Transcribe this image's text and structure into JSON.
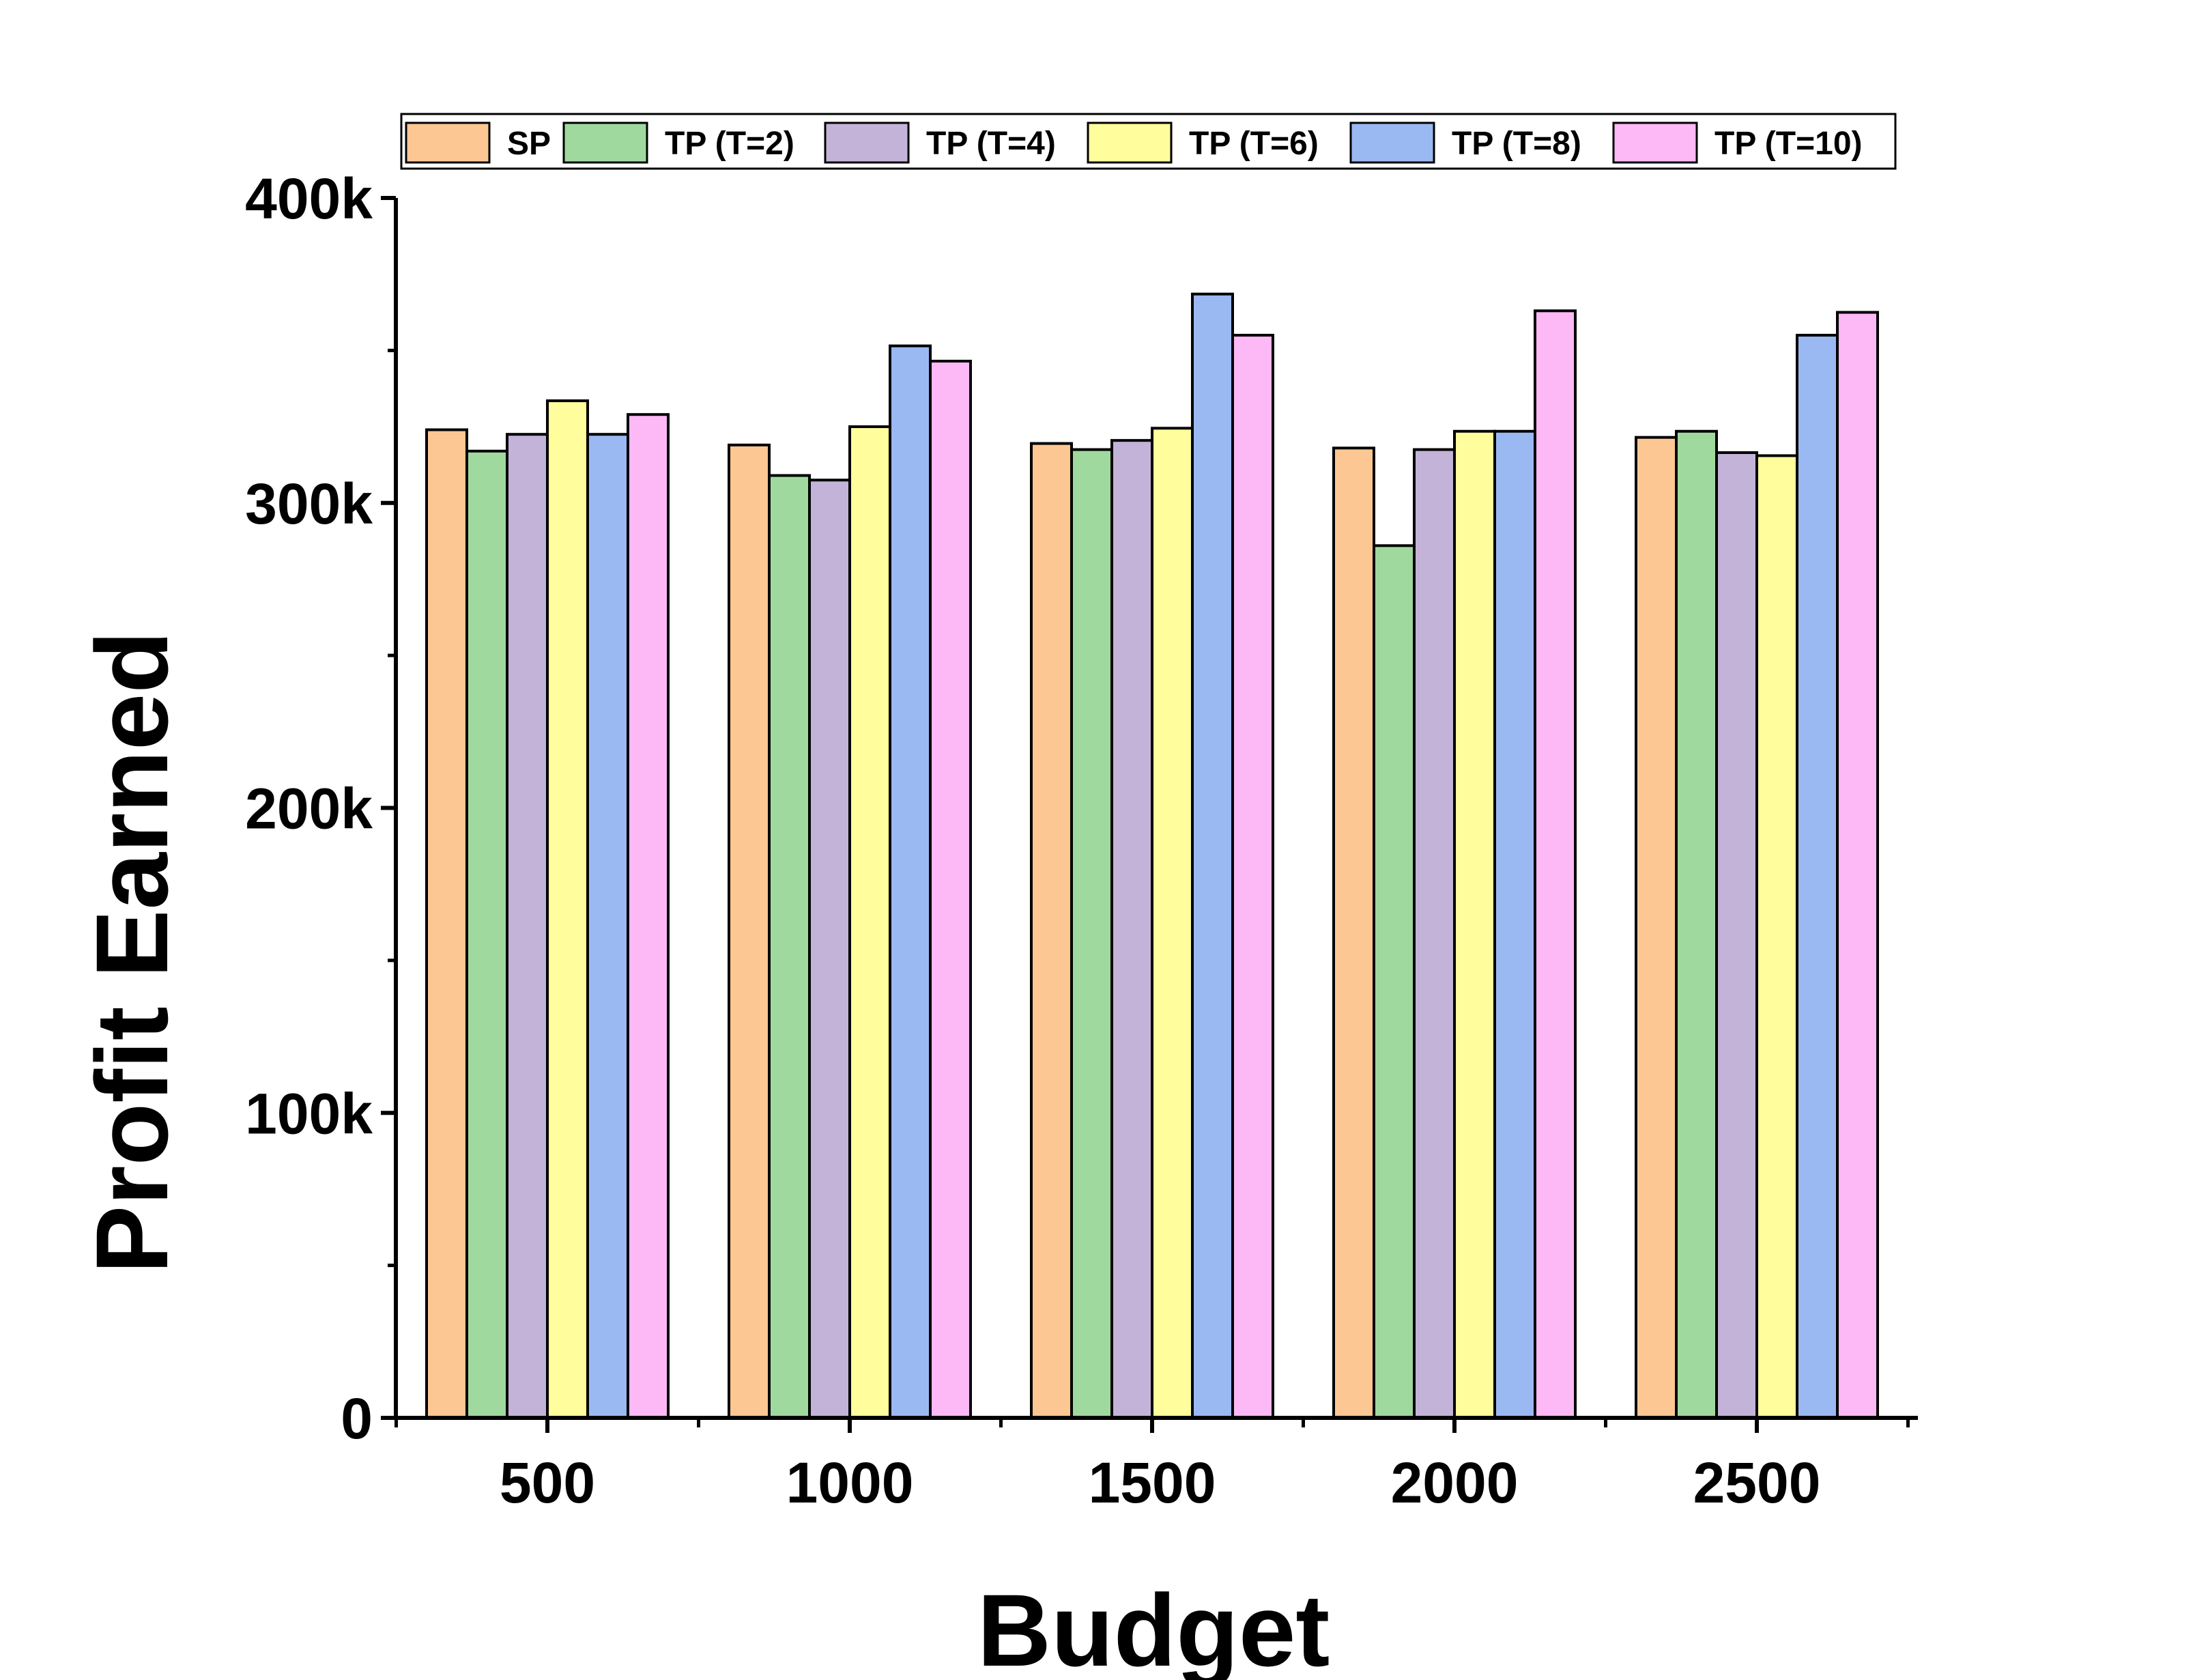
{
  "chart_data": {
    "type": "bar",
    "xlabel": "Budget",
    "ylabel": "Profit Earned",
    "categories": [
      "500",
      "1000",
      "1500",
      "2000",
      "2500"
    ],
    "ylim": [
      0,
      400000
    ],
    "y_ticks": [
      {
        "value": 0,
        "label": "0"
      },
      {
        "value": 100000,
        "label": "100k"
      },
      {
        "value": 200000,
        "label": "200k"
      },
      {
        "value": 300000,
        "label": "300k"
      },
      {
        "value": 400000,
        "label": "400k"
      }
    ],
    "legend_position": "top",
    "grid": false,
    "series": [
      {
        "name": "SP",
        "color": "#FCC793",
        "values": [
          324000,
          319000,
          319500,
          318000,
          321500
        ]
      },
      {
        "name": "TP (T=2)",
        "color": "#9FD99E",
        "values": [
          317000,
          309000,
          317500,
          286000,
          323500
        ]
      },
      {
        "name": "TP (T=4)",
        "color": "#C4B3D8",
        "values": [
          322500,
          307500,
          320500,
          317500,
          316500
        ]
      },
      {
        "name": "TP (T=6)",
        "color": "#FFFD9C",
        "values": [
          333500,
          325000,
          324500,
          323500,
          315500
        ]
      },
      {
        "name": "TP (T=8)",
        "color": "#9AB9F2",
        "values": [
          322500,
          351500,
          368500,
          323500,
          355000
        ]
      },
      {
        "name": "TP (T=10)",
        "color": "#FDB8F6",
        "values": [
          329000,
          346500,
          355000,
          363000,
          362500
        ]
      }
    ]
  }
}
